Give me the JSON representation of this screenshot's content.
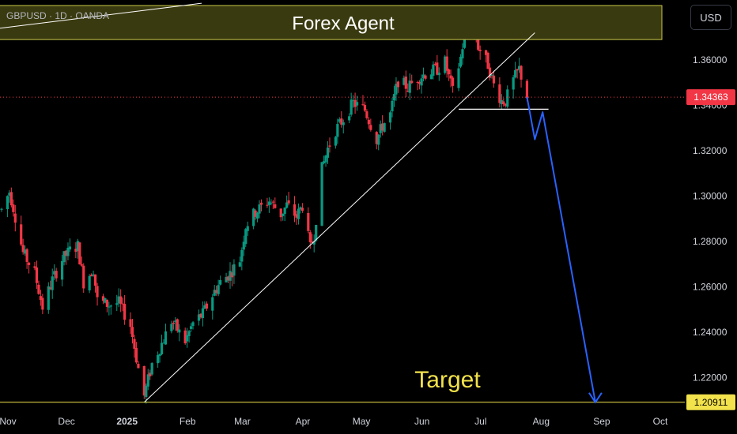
{
  "chart_data": {
    "type": "candlestick",
    "symbol_label": "GBPUSD · 1D · OANDA",
    "currency": "USD",
    "y_axis": {
      "ylim": [
        1.195,
        1.385
      ],
      "ticks": [
        "1.36000",
        "1.34000",
        "1.32000",
        "1.30000",
        "1.28000",
        "1.26000",
        "1.24000",
        "1.22000"
      ]
    },
    "x_axis": {
      "labels": [
        "Nov",
        "Dec",
        "2025",
        "Feb",
        "Mar",
        "Apr",
        "May",
        "Jun",
        "Jul",
        "Aug",
        "Sep",
        "Oct"
      ],
      "bold_label": "2025"
    },
    "last_price": {
      "label": "1.34363",
      "value": 1.34363,
      "color": "#f23645"
    },
    "target_price": {
      "label": "1.20911",
      "value": 1.20911,
      "color": "#f2e24b"
    },
    "annotations": {
      "banner": "Forex Agent",
      "target": "Target"
    },
    "series_close_path": [
      [
        "2024-11-01",
        1.294
      ],
      [
        "2024-11-05",
        1.302
      ],
      [
        "2024-11-07",
        1.295
      ],
      [
        "2024-11-12",
        1.275
      ],
      [
        "2024-11-18",
        1.266
      ],
      [
        "2024-11-22",
        1.251
      ],
      [
        "2024-11-27",
        1.263
      ],
      [
        "2024-12-02",
        1.272
      ],
      [
        "2024-12-06",
        1.276
      ],
      [
        "2024-12-10",
        1.278
      ],
      [
        "2024-12-13",
        1.262
      ],
      [
        "2024-12-18",
        1.268
      ],
      [
        "2024-12-20",
        1.254
      ],
      [
        "2024-12-26",
        1.252
      ],
      [
        "2024-12-31",
        1.253
      ],
      [
        "2025-01-06",
        1.243
      ],
      [
        "2025-01-10",
        1.224
      ],
      [
        "2025-01-13",
        1.212
      ],
      [
        "2025-01-17",
        1.226
      ],
      [
        "2025-01-22",
        1.235
      ],
      [
        "2025-01-27",
        1.245
      ],
      [
        "2025-02-03",
        1.236
      ],
      [
        "2025-02-07",
        1.244
      ],
      [
        "2025-02-12",
        1.248
      ],
      [
        "2025-02-18",
        1.258
      ],
      [
        "2025-02-21",
        1.262
      ],
      [
        "2025-02-26",
        1.266
      ],
      [
        "2025-03-03",
        1.272
      ],
      [
        "2025-03-06",
        1.287
      ],
      [
        "2025-03-11",
        1.293
      ],
      [
        "2025-03-18",
        1.298
      ],
      [
        "2025-03-24",
        1.292
      ],
      [
        "2025-03-27",
        1.296
      ],
      [
        "2025-04-01",
        1.291
      ],
      [
        "2025-04-04",
        1.296
      ],
      [
        "2025-04-08",
        1.277
      ],
      [
        "2025-04-10",
        1.283
      ],
      [
        "2025-04-14",
        1.312
      ],
      [
        "2025-04-17",
        1.321
      ],
      [
        "2025-04-21",
        1.329
      ],
      [
        "2025-04-25",
        1.334
      ],
      [
        "2025-04-30",
        1.341
      ],
      [
        "2025-05-06",
        1.338
      ],
      [
        "2025-05-12",
        1.325
      ],
      [
        "2025-05-15",
        1.331
      ],
      [
        "2025-05-19",
        1.336
      ],
      [
        "2025-05-23",
        1.351
      ],
      [
        "2025-05-28",
        1.348
      ],
      [
        "2025-06-02",
        1.352
      ],
      [
        "2025-06-06",
        1.354
      ],
      [
        "2025-06-12",
        1.356
      ],
      [
        "2025-06-16",
        1.359
      ],
      [
        "2025-06-20",
        1.346
      ],
      [
        "2025-06-24",
        1.361
      ],
      [
        "2025-06-26",
        1.371
      ],
      [
        "2025-07-01",
        1.374
      ],
      [
        "2025-07-03",
        1.366
      ],
      [
        "2025-07-08",
        1.358
      ],
      [
        "2025-07-11",
        1.349
      ],
      [
        "2025-07-15",
        1.342
      ],
      [
        "2025-07-17",
        1.342
      ],
      [
        "2025-07-21",
        1.351
      ],
      [
        "2025-07-24",
        1.356
      ],
      [
        "2025-07-28",
        1.344
      ]
    ],
    "projection_path": [
      [
        "2025-07-28",
        1.3436
      ],
      [
        "2025-08-01",
        1.325
      ],
      [
        "2025-08-05",
        1.337
      ],
      [
        "2025-09-01",
        1.2091
      ]
    ],
    "trendline": [
      [
        "2025-01-13",
        1.2091
      ],
      [
        "2025-08-01",
        1.372
      ]
    ],
    "neckline": [
      [
        "2025-06-23",
        1.3383
      ],
      [
        "2025-08-08",
        1.3383
      ]
    ],
    "colors": {
      "up": "#089981",
      "down": "#f23645",
      "projection": "#2962ff",
      "banner_fill": "#3a3a10",
      "banner_border": "#c8c84a"
    }
  }
}
